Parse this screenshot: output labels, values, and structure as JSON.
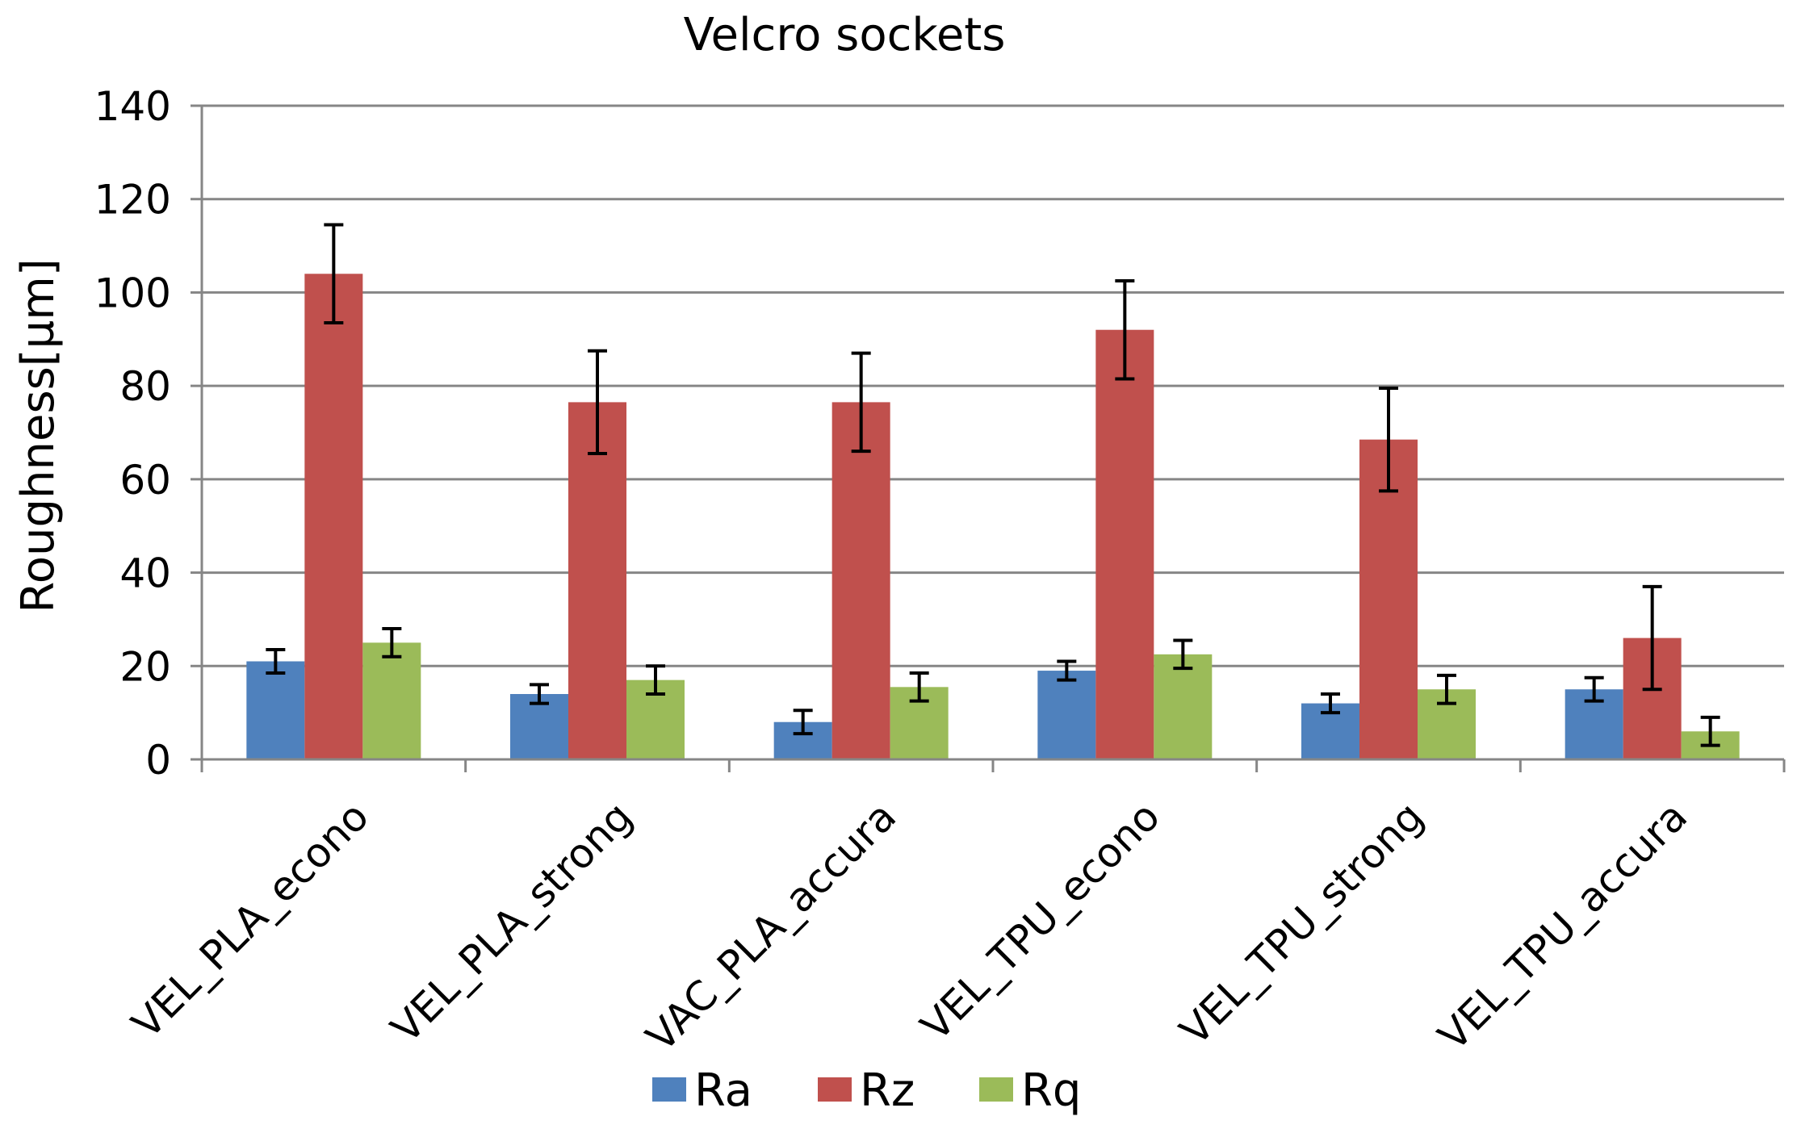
{
  "chart_data": {
    "type": "bar",
    "title": "Velcro sockets",
    "xlabel": "",
    "ylabel": "Roughness[µm]",
    "ylim": [
      0,
      140
    ],
    "yticks": [
      0,
      20,
      40,
      60,
      80,
      100,
      120,
      140
    ],
    "grid": true,
    "legend_position": "bottom",
    "categories": [
      "VEL_PLA_econo",
      "VEL_PLA_strong",
      "VAC_PLA_accura",
      "VEL_TPU_econo",
      "VEL_TPU_strong",
      "VEL_TPU_accura"
    ],
    "series": [
      {
        "name": "Ra",
        "color": "#4F81BD",
        "values": [
          21,
          14,
          8,
          19,
          12,
          15
        ],
        "errors": [
          2.5,
          2,
          2.5,
          2,
          2,
          2.5
        ]
      },
      {
        "name": "Rz",
        "color": "#C0504D",
        "values": [
          104,
          76.5,
          76.5,
          92,
          68.5,
          26
        ],
        "errors": [
          10.5,
          11,
          10.5,
          10.5,
          11,
          11
        ]
      },
      {
        "name": "Rq",
        "color": "#9BBB59",
        "values": [
          25,
          17,
          15.5,
          22.5,
          15,
          6
        ],
        "errors": [
          3,
          3,
          3,
          3,
          3,
          3
        ]
      }
    ]
  }
}
